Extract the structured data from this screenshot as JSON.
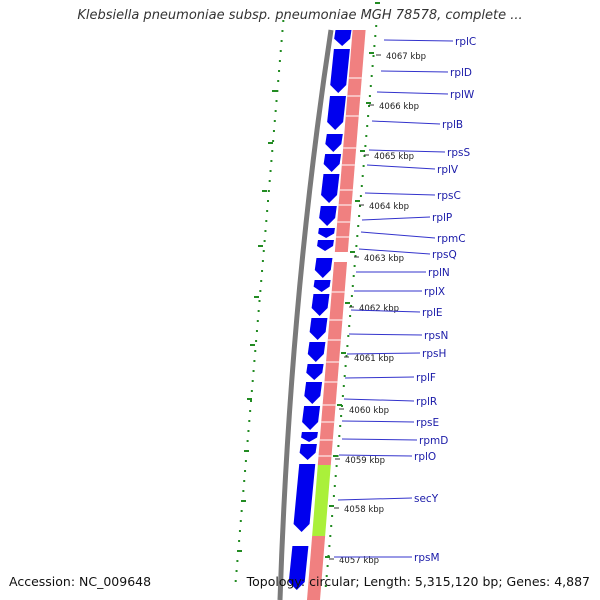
{
  "title": "Klebsiella pneumoniae subsp. pneumoniae MGH 78578, complete ...",
  "footer": {
    "accession": "Accession: NC_009648",
    "topology": "Topology: circular; Length: 5,315,120 bp; Genes: 4,887"
  },
  "colors": {
    "cds": "#0000ee",
    "rrna": "#f08080",
    "trna": "#aaf03a",
    "backbone": "#808080",
    "gc_dots": "#228b22",
    "label_line": "#3333cc",
    "label_text": "#1a1aa8"
  },
  "kbp_ticks": [
    "4067 kbp",
    "4066 kbp",
    "4065 kbp",
    "4064 kbp",
    "4063 kbp",
    "4062 kbp",
    "4061 kbp",
    "4060 kbp",
    "4059 kbp",
    "4058 kbp",
    "4057 kbp"
  ],
  "gene_labels": [
    "rplC",
    "rplD",
    "rplW",
    "rplB",
    "rpsS",
    "rplV",
    "rpsC",
    "rplP",
    "rpmC",
    "rpsQ",
    "rplN",
    "rplX",
    "rplE",
    "rpsN",
    "rpsH",
    "rplF",
    "rplR",
    "rpsE",
    "rpmD",
    "rplO",
    "secY",
    "rpsM"
  ]
}
